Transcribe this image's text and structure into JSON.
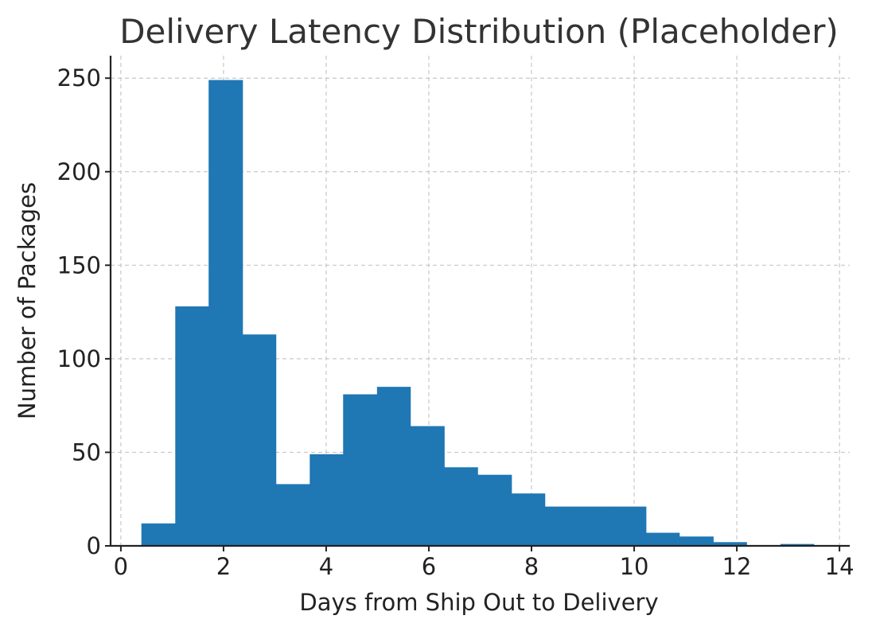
{
  "chart_data": {
    "type": "bar",
    "title": "Delivery Latency Distribution (Placeholder)",
    "xlabel": "Days from Ship Out to Delivery",
    "ylabel": "Number of Packages",
    "xlim": [
      -0.2,
      14.2
    ],
    "ylim": [
      0,
      262
    ],
    "xticks": [
      0,
      2,
      4,
      6,
      8,
      10,
      12,
      14
    ],
    "yticks": [
      0,
      50,
      100,
      150,
      200,
      250
    ],
    "grid": true,
    "bar_color": "#1f77b4",
    "bins": [
      {
        "x0": 0.4,
        "x1": 1.06,
        "value": 12
      },
      {
        "x0": 1.06,
        "x1": 1.71,
        "value": 128
      },
      {
        "x0": 1.71,
        "x1": 2.37,
        "value": 249
      },
      {
        "x0": 2.37,
        "x1": 3.02,
        "value": 113
      },
      {
        "x0": 3.02,
        "x1": 3.68,
        "value": 33
      },
      {
        "x0": 3.68,
        "x1": 4.33,
        "value": 49
      },
      {
        "x0": 4.33,
        "x1": 4.99,
        "value": 81
      },
      {
        "x0": 4.99,
        "x1": 5.64,
        "value": 85
      },
      {
        "x0": 5.64,
        "x1": 6.3,
        "value": 64
      },
      {
        "x0": 6.3,
        "x1": 6.95,
        "value": 42
      },
      {
        "x0": 6.95,
        "x1": 7.61,
        "value": 38
      },
      {
        "x0": 7.61,
        "x1": 8.26,
        "value": 28
      },
      {
        "x0": 8.26,
        "x1": 8.92,
        "value": 21
      },
      {
        "x0": 8.92,
        "x1": 9.57,
        "value": 21
      },
      {
        "x0": 9.57,
        "x1": 10.23,
        "value": 21
      },
      {
        "x0": 10.23,
        "x1": 10.88,
        "value": 7
      },
      {
        "x0": 10.88,
        "x1": 11.54,
        "value": 5
      },
      {
        "x0": 11.54,
        "x1": 12.19,
        "value": 2
      },
      {
        "x0": 12.19,
        "x1": 12.85,
        "value": 0
      },
      {
        "x0": 12.85,
        "x1": 13.5,
        "value": 1
      }
    ]
  }
}
